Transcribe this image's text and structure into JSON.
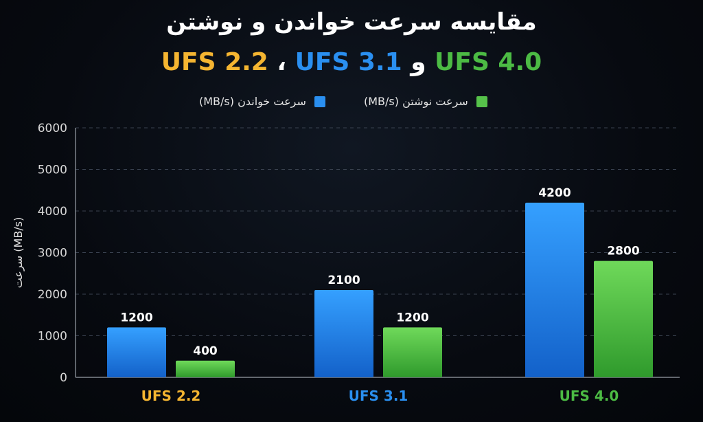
{
  "title": {
    "line1": "مقایسه سرعت خواندن و نوشتن",
    "line2": [
      {
        "text": "UFS 4.0",
        "color": "#4cbb44"
      },
      {
        "text": " و ",
        "color": "#ffffff"
      },
      {
        "text": "UFS 3.1",
        "color": "#2a8ff0"
      },
      {
        "text": " ، ",
        "color": "#ffffff"
      },
      {
        "text": "UFS 2.2",
        "color": "#f5b531"
      }
    ]
  },
  "legend": {
    "read_label": "سرعت خواندن (MB/s)",
    "write_label": "سرعت نوشتن (MB/s)"
  },
  "chart_data": {
    "type": "bar",
    "categories": [
      "UFS 2.2",
      "UFS 3.1",
      "UFS 4.0"
    ],
    "category_colors": [
      "#f5b531",
      "#2a8ff0",
      "#4cbb44"
    ],
    "series": [
      {
        "name": "سرعت خواندن (MB/s)",
        "values": [
          1200,
          2100,
          4200
        ],
        "color": "#2a8ff0"
      },
      {
        "name": "سرعت نوشتن (MB/s)",
        "values": [
          400,
          1200,
          2800
        ],
        "color": "#56c24a"
      }
    ],
    "ylabel": "سرعت (MB/s)",
    "ylim": [
      0,
      6000
    ],
    "yticks": [
      0,
      1000,
      2000,
      3000,
      4000,
      5000,
      6000
    ],
    "grid": true,
    "legend_position": "top-center"
  }
}
